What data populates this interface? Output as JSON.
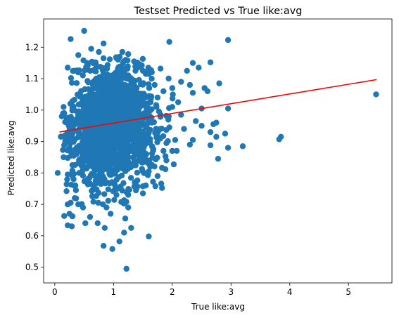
{
  "chart_data": {
    "type": "scatter",
    "title": "Testset Predicted vs True like:avg",
    "xlabel": "True like:avg",
    "ylabel": "Predicted like:avg",
    "xlim": [
      -0.19,
      5.74
    ],
    "ylim": [
      0.45,
      1.29
    ],
    "xticks": [
      0,
      1,
      2,
      3,
      4,
      5
    ],
    "yticks": [
      0.5,
      0.6,
      0.7,
      0.8,
      0.9,
      1.0,
      1.1,
      1.2
    ],
    "grid": false,
    "point_color": "#1f77b4",
    "line_color": "#ff0000",
    "fit_line": {
      "x": [
        0.08,
        5.48
      ],
      "y": [
        0.93,
        1.097
      ]
    },
    "points": [
      [
        0.5,
        1.252
      ],
      [
        0.27,
        1.226
      ],
      [
        1.95,
        1.217
      ],
      [
        2.95,
        1.223
      ],
      [
        0.62,
        1.195
      ],
      [
        0.75,
        1.185
      ],
      [
        0.83,
        1.212
      ],
      [
        1.15,
        1.185
      ],
      [
        1.25,
        1.178
      ],
      [
        0.4,
        1.175
      ],
      [
        0.55,
        1.15
      ],
      [
        1.05,
        1.165
      ],
      [
        0.22,
        1.135
      ],
      [
        2.35,
        1.15
      ],
      [
        2.65,
        1.152
      ],
      [
        1.8,
        1.132
      ],
      [
        2.25,
        1.125
      ],
      [
        2.45,
        1.135
      ],
      [
        0.4,
        1.12
      ],
      [
        1.55,
        1.115
      ],
      [
        2.3,
        1.08
      ],
      [
        2.55,
        1.07
      ],
      [
        2.8,
        1.085
      ],
      [
        2.35,
        1.055
      ],
      [
        2.6,
        1.06
      ],
      [
        2.95,
        1.005
      ],
      [
        2.5,
        1.005
      ],
      [
        2.15,
        0.985
      ],
      [
        2.4,
        0.965
      ],
      [
        1.95,
        0.945
      ],
      [
        2.2,
        0.94
      ],
      [
        2.7,
        0.955
      ],
      [
        2.75,
        0.96
      ],
      [
        2.9,
        0.925
      ],
      [
        2.5,
        0.95
      ],
      [
        2.65,
        0.93
      ],
      [
        2.75,
        0.915
      ],
      [
        2.35,
        0.905
      ],
      [
        2.3,
        0.89
      ],
      [
        2.65,
        0.888
      ],
      [
        2.95,
        0.88
      ],
      [
        3.2,
        0.885
      ],
      [
        3.85,
        0.915
      ],
      [
        3.82,
        0.907
      ],
      [
        2.78,
        0.845
      ],
      [
        5.47,
        1.05
      ],
      [
        0.05,
        0.8
      ],
      [
        0.2,
        0.742
      ],
      [
        0.22,
        0.7
      ],
      [
        0.27,
        0.705
      ],
      [
        0.16,
        0.663
      ],
      [
        0.25,
        0.67
      ],
      [
        0.3,
        0.662
      ],
      [
        0.22,
        0.633
      ],
      [
        0.29,
        0.63
      ],
      [
        0.34,
        0.72
      ],
      [
        0.36,
        0.745
      ],
      [
        0.4,
        0.7
      ],
      [
        0.48,
        0.69
      ],
      [
        0.6,
        0.66
      ],
      [
        0.52,
        0.64
      ],
      [
        0.73,
        0.64
      ],
      [
        0.82,
        0.7
      ],
      [
        0.88,
        0.69
      ],
      [
        0.95,
        0.67
      ],
      [
        1.05,
        0.73
      ],
      [
        1.2,
        0.71
      ],
      [
        1.25,
        0.69
      ],
      [
        1.2,
        0.655
      ],
      [
        1.3,
        0.625
      ],
      [
        1.18,
        0.61
      ],
      [
        0.85,
        0.625
      ],
      [
        0.83,
        0.568
      ],
      [
        0.98,
        0.558
      ],
      [
        1.1,
        0.582
      ],
      [
        1.22,
        0.495
      ],
      [
        1.6,
        0.598
      ],
      [
        1.4,
        0.755
      ],
      [
        1.5,
        0.735
      ],
      [
        1.55,
        0.76
      ],
      [
        1.6,
        0.805
      ],
      [
        1.75,
        0.79
      ],
      [
        1.9,
        0.84
      ],
      [
        1.85,
        0.87
      ],
      [
        2.0,
        0.87
      ],
      [
        1.75,
        0.915
      ],
      [
        1.9,
        0.895
      ],
      [
        2.05,
        0.905
      ],
      [
        1.8,
        0.94
      ],
      [
        1.65,
        0.96
      ],
      [
        1.8,
        0.985
      ],
      [
        2.0,
        1.01
      ],
      [
        2.1,
        1.025
      ],
      [
        1.75,
        1.04
      ],
      [
        1.85,
        1.06
      ],
      [
        2.0,
        1.07
      ],
      [
        2.15,
        1.09
      ],
      [
        1.7,
        1.08
      ],
      [
        1.65,
        1.1
      ],
      [
        1.6,
        1.115
      ],
      [
        1.5,
        1.125
      ],
      [
        1.45,
        1.145
      ],
      [
        1.35,
        1.155
      ],
      [
        0.15,
        1.01
      ],
      [
        0.12,
        0.98
      ],
      [
        0.2,
        0.96
      ],
      [
        0.25,
        0.935
      ],
      [
        0.18,
        0.905
      ],
      [
        0.25,
        0.88
      ],
      [
        0.28,
        0.855
      ],
      [
        0.3,
        0.825
      ],
      [
        0.22,
        0.795
      ],
      [
        0.32,
        0.78
      ],
      [
        0.35,
        0.76
      ],
      [
        0.15,
        0.85
      ]
    ],
    "cloud": {
      "cx": 0.98,
      "cy": 0.96,
      "sx": 0.36,
      "sy": 0.095,
      "n": 1700,
      "seed": 7
    }
  }
}
